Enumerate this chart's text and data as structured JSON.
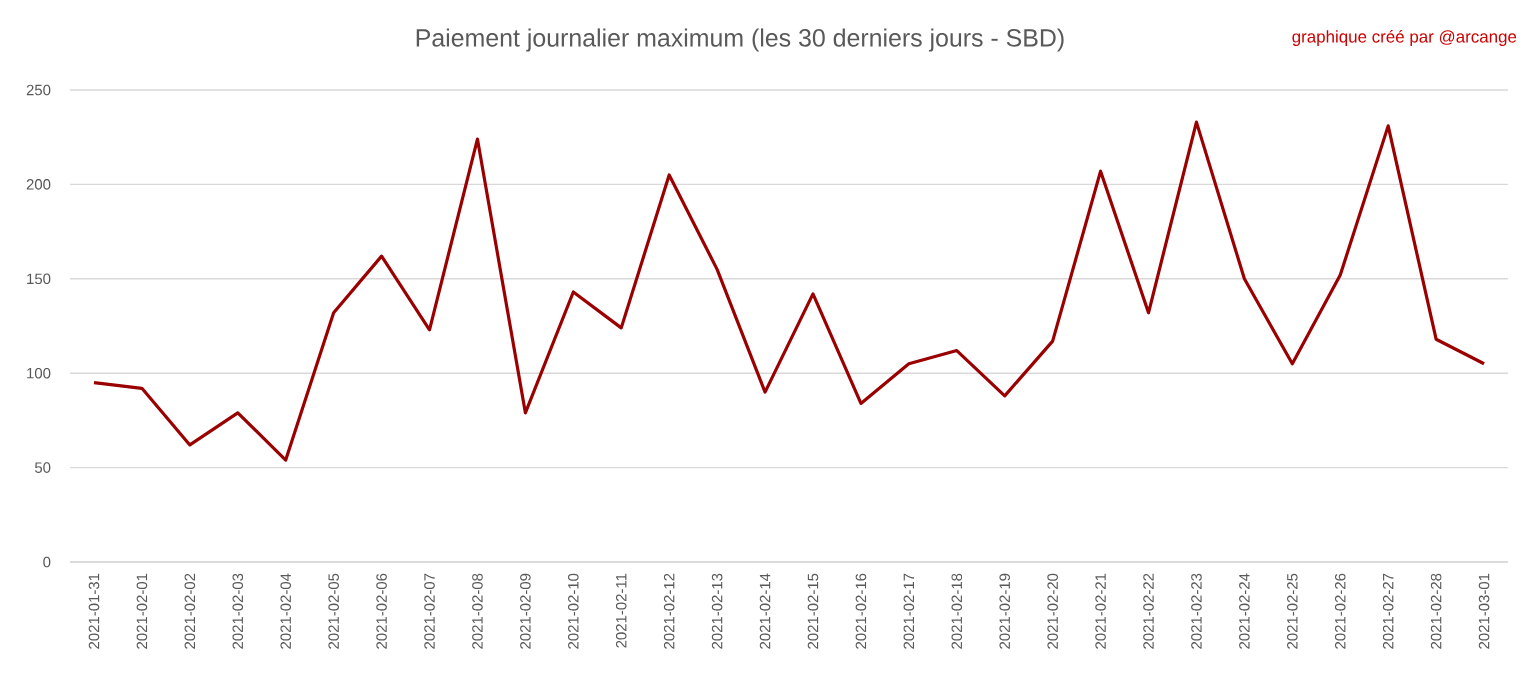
{
  "chart_data": {
    "type": "line",
    "title": "Paiement journalier maximum (les 30 derniers jours - SBD)",
    "annotations": [
      "graphique créé par @arcange"
    ],
    "categories": [
      "2021-01-31",
      "2021-02-01",
      "2021-02-02",
      "2021-02-03",
      "2021-02-04",
      "2021-02-05",
      "2021-02-06",
      "2021-02-07",
      "2021-02-08",
      "2021-02-09",
      "2021-02-10",
      "2021-02-11",
      "2021-02-12",
      "2021-02-13",
      "2021-02-14",
      "2021-02-15",
      "2021-02-16",
      "2021-02-17",
      "2021-02-18",
      "2021-02-19",
      "2021-02-20",
      "2021-02-21",
      "2021-02-22",
      "2021-02-23",
      "2021-02-24",
      "2021-02-25",
      "2021-02-26",
      "2021-02-27",
      "2021-02-28",
      "2021-03-01"
    ],
    "series": [
      {
        "color": "#9b0000",
        "values": [
          95,
          92,
          62,
          79,
          54,
          132,
          162,
          123,
          224,
          79,
          143,
          124,
          205,
          155,
          90,
          142,
          84,
          105,
          112,
          88,
          117,
          207,
          132,
          233,
          150,
          105,
          152,
          231,
          118,
          105
        ]
      }
    ],
    "ylim": [
      0,
      250
    ],
    "yticks": [
      0,
      50,
      100,
      150,
      200,
      250
    ],
    "grid": "y",
    "legend": false,
    "marker": "none",
    "line_style": "solid"
  }
}
